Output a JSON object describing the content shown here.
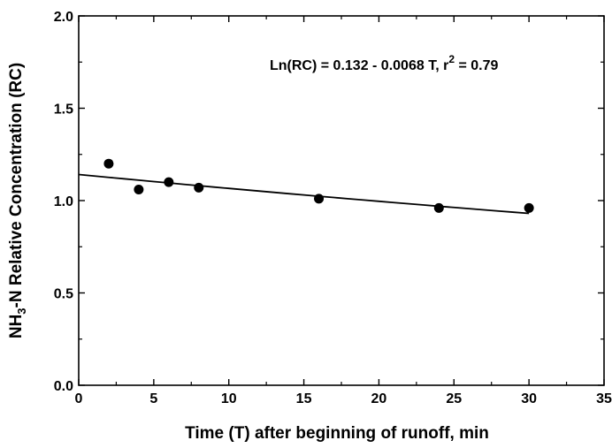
{
  "chart_data": {
    "type": "scatter",
    "xlabel": "Time (T) after beginning of runoff, min",
    "ylabel": {
      "prefix": "NH",
      "subscript": "3",
      "suffix": "-N Relative Concentration (RC)"
    },
    "xlim": [
      0,
      35
    ],
    "ylim": [
      0,
      2
    ],
    "x_ticks": [
      0,
      5,
      10,
      15,
      20,
      25,
      30,
      35
    ],
    "x_tick_labels": [
      "0",
      "5",
      "10",
      "15",
      "20",
      "25",
      "30",
      "35"
    ],
    "y_ticks": [
      0,
      0.5,
      1,
      1.5,
      2
    ],
    "y_tick_labels": [
      "0.0",
      "0.5",
      "1.0",
      "1.5",
      "2.0"
    ],
    "grid": false,
    "points": [
      {
        "x": 2,
        "y": 1.2
      },
      {
        "x": 4,
        "y": 1.06
      },
      {
        "x": 6,
        "y": 1.1
      },
      {
        "x": 8,
        "y": 1.07
      },
      {
        "x": 16,
        "y": 1.01
      },
      {
        "x": 24,
        "y": 0.96
      },
      {
        "x": 30,
        "y": 0.96
      }
    ],
    "fit": {
      "model": "Ln(RC) = a + b T",
      "intercept": 0.132,
      "slope": -0.0068,
      "x_range": [
        0,
        30
      ]
    },
    "annotation": {
      "main": "Ln(RC) = 0.132 - 0.0068 T, r",
      "superscript": "2",
      "tail": " = 0.79"
    }
  }
}
